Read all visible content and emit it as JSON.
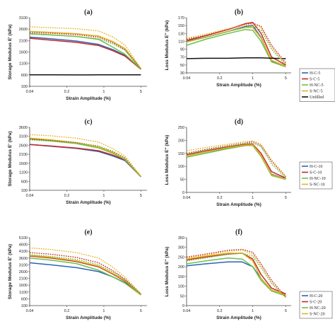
{
  "chart_data": [
    {
      "type": "line",
      "panel_label": "(a)",
      "xlabel": "Strain Amplitude (%)",
      "ylabel": "Storage Modulus E' (kPa)",
      "x_ticks": [
        0.04,
        0.2,
        1,
        5
      ],
      "xlim": [
        0.04,
        6.5
      ],
      "y_ticks": [
        100,
        600,
        1100,
        1600,
        2100,
        2600,
        3100
      ],
      "ylim": [
        100,
        3100
      ],
      "x": [
        0.04,
        0.1,
        0.3,
        0.8,
        1.5,
        2.5,
        5
      ],
      "series": [
        {
          "name": "H-C-5",
          "color": "#2e62b8",
          "dash": false,
          "values": [
            2250,
            2180,
            2080,
            1930,
            1700,
            1450,
            850
          ]
        },
        {
          "name": "S-C-5",
          "color": "#c62828",
          "dash": false,
          "values": [
            2200,
            2120,
            2020,
            1880,
            1650,
            1420,
            850
          ]
        },
        {
          "name": "H-NC-5",
          "color": "#6cc04a",
          "dash": false,
          "values": [
            2400,
            2350,
            2280,
            2150,
            1800,
            1500,
            860
          ]
        },
        {
          "name": "S-NC-5",
          "color": "#e2b321",
          "dash": false,
          "values": [
            2500,
            2460,
            2400,
            2300,
            2050,
            1750,
            870
          ]
        },
        {
          "name": "Unfilled",
          "color": "#111111",
          "dash": false,
          "values": [
            600,
            600,
            598,
            600,
            602,
            600,
            600
          ]
        },
        {
          "name": "",
          "color": "#c62828",
          "dash": true,
          "values": [
            2450,
            2420,
            2360,
            2250,
            2000,
            1700,
            860
          ]
        },
        {
          "name": "",
          "color": "#6cc04a",
          "dash": true,
          "values": [
            2380,
            2340,
            2280,
            2180,
            1950,
            1680,
            860
          ]
        },
        {
          "name": "",
          "color": "#e2b321",
          "dash": true,
          "values": [
            2700,
            2660,
            2620,
            2520,
            2250,
            1900,
            880
          ]
        }
      ],
      "legend": [
        "H-C-5",
        "S-C-5",
        "H-NC-5",
        "S-NC-5",
        "Unfilled"
      ]
    },
    {
      "type": "line",
      "panel_label": "(b)",
      "xlabel": "Strain Amplitude (%)",
      "ylabel": "Loss Modulus E'' (kPa)",
      "x_ticks": [
        0.04,
        0.2,
        1,
        5
      ],
      "xlim": [
        0.04,
        6.5
      ],
      "y_ticks": [
        30,
        50,
        70,
        90,
        110,
        130,
        150,
        170
      ],
      "ylim": [
        30,
        170
      ],
      "x": [
        0.04,
        0.1,
        0.3,
        0.7,
        1.0,
        1.5,
        2.5,
        5
      ],
      "series": [
        {
          "name": "H-C-5",
          "color": "#2e62b8",
          "dash": false,
          "values": [
            110,
            120,
            135,
            148,
            150,
            120,
            60,
            48
          ]
        },
        {
          "name": "S-C-5",
          "color": "#c62828",
          "dash": false,
          "values": [
            112,
            124,
            140,
            155,
            158,
            130,
            70,
            50
          ]
        },
        {
          "name": "H-NC-5",
          "color": "#6cc04a",
          "dash": false,
          "values": [
            100,
            115,
            130,
            140,
            138,
            110,
            58,
            45
          ]
        },
        {
          "name": "S-NC-5",
          "color": "#e2b321",
          "dash": false,
          "values": [
            108,
            120,
            135,
            145,
            145,
            118,
            62,
            47
          ]
        },
        {
          "name": "Unfilled",
          "color": "#111111",
          "dash": false,
          "values": [
            66,
            67,
            67,
            68,
            68,
            68,
            67,
            66
          ]
        },
        {
          "name": "",
          "color": "#c62828",
          "dash": true,
          "values": [
            115,
            125,
            140,
            152,
            156,
            148,
            100,
            55
          ]
        },
        {
          "name": "",
          "color": "#6cc04a",
          "dash": true,
          "values": [
            110,
            120,
            135,
            146,
            148,
            138,
            90,
            50
          ]
        },
        {
          "name": "",
          "color": "#e2b321",
          "dash": true,
          "values": [
            118,
            128,
            142,
            152,
            154,
            145,
            95,
            52
          ]
        }
      ],
      "legend": [
        "H-C-5",
        "S-C-5",
        "H-NC-5",
        "S-NC-5",
        "Unfilled"
      ]
    },
    {
      "type": "line",
      "panel_label": "(c)",
      "xlabel": "Strain Amplitude (%)",
      "ylabel": "Storage Modulus E' (kPa)",
      "x_ticks": [
        0.04,
        0.2,
        1,
        5
      ],
      "xlim": [
        0.04,
        6.5
      ],
      "y_ticks": [
        100,
        600,
        1100,
        1600,
        2100,
        2600,
        3100,
        3600
      ],
      "ylim": [
        100,
        3600
      ],
      "x": [
        0.04,
        0.1,
        0.3,
        0.8,
        1.5,
        2.5,
        5
      ],
      "series": [
        {
          "name": "H-C-10",
          "color": "#2e62b8",
          "dash": false,
          "values": [
            2650,
            2550,
            2430,
            2250,
            2000,
            1750,
            850
          ]
        },
        {
          "name": "S-C-10",
          "color": "#c62828",
          "dash": false,
          "values": [
            2650,
            2560,
            2450,
            2300,
            2050,
            1800,
            850
          ]
        },
        {
          "name": "H-NC-10",
          "color": "#6cc04a",
          "dash": false,
          "values": [
            2950,
            2850,
            2700,
            2450,
            2150,
            1820,
            860
          ]
        },
        {
          "name": "S-NC-10",
          "color": "#e2b321",
          "dash": false,
          "values": [
            3000,
            2900,
            2750,
            2500,
            2200,
            1850,
            870
          ]
        },
        {
          "name": "",
          "color": "#c62828",
          "dash": true,
          "values": [
            2950,
            2870,
            2750,
            2550,
            2250,
            1900,
            860
          ]
        },
        {
          "name": "",
          "color": "#6cc04a",
          "dash": true,
          "values": [
            2900,
            2830,
            2720,
            2530,
            2230,
            1880,
            860
          ]
        },
        {
          "name": "",
          "color": "#e2b321",
          "dash": true,
          "values": [
            3200,
            3130,
            3000,
            2780,
            2400,
            2000,
            880
          ]
        }
      ],
      "legend": [
        "H-C-10",
        "S-C-10",
        "H-NC-10",
        "S-NC-10"
      ]
    },
    {
      "type": "line",
      "panel_label": "(d)",
      "xlabel": "Strain Amplitude (%)",
      "ylabel": "Loss Modulus E'' (kPa)",
      "x_ticks": [
        0.04,
        0.2,
        1,
        5
      ],
      "xlim": [
        0.04,
        6.5
      ],
      "y_ticks": [
        0,
        50,
        100,
        150,
        200,
        250
      ],
      "ylim": [
        0,
        250
      ],
      "x": [
        0.04,
        0.1,
        0.3,
        0.7,
        1.0,
        1.5,
        2.5,
        5
      ],
      "series": [
        {
          "name": "H-C-10",
          "color": "#2e62b8",
          "dash": false,
          "values": [
            140,
            155,
            170,
            180,
            182,
            140,
            70,
            52
          ]
        },
        {
          "name": "S-C-10",
          "color": "#c62828",
          "dash": false,
          "values": [
            145,
            160,
            175,
            185,
            185,
            150,
            80,
            55
          ]
        },
        {
          "name": "H-NC-10",
          "color": "#6cc04a",
          "dash": false,
          "values": [
            135,
            150,
            168,
            180,
            180,
            138,
            65,
            50
          ]
        },
        {
          "name": "S-NC-10",
          "color": "#e2b321",
          "dash": false,
          "values": [
            140,
            155,
            172,
            182,
            183,
            142,
            68,
            51
          ]
        },
        {
          "name": "",
          "color": "#c62828",
          "dash": true,
          "values": [
            150,
            165,
            180,
            190,
            195,
            180,
            120,
            60
          ]
        },
        {
          "name": "",
          "color": "#6cc04a",
          "dash": true,
          "values": [
            148,
            162,
            178,
            188,
            190,
            175,
            110,
            55
          ]
        },
        {
          "name": "",
          "color": "#e2b321",
          "dash": true,
          "values": [
            160,
            172,
            185,
            195,
            198,
            185,
            125,
            62
          ]
        }
      ],
      "legend": [
        "H-C-10",
        "S-C-10",
        "H-NC-10",
        "S-NC-10"
      ]
    },
    {
      "type": "line",
      "panel_label": "(e)",
      "xlabel": "Strain Amplitude (%)",
      "ylabel": "Storage Modulus E' (kPa)",
      "x_ticks": [
        0.04,
        0.2,
        1,
        5
      ],
      "xlim": [
        0.04,
        6.5
      ],
      "y_ticks": [
        100,
        600,
        1100,
        1600,
        2100,
        2600,
        3100,
        3600,
        4100,
        4600,
        5100
      ],
      "ylim": [
        100,
        5100
      ],
      "x": [
        0.04,
        0.1,
        0.3,
        0.8,
        1.5,
        2.5,
        5
      ],
      "series": [
        {
          "name": "H-C-20",
          "color": "#2e62b8",
          "dash": false,
          "values": [
            3250,
            3100,
            2900,
            2600,
            2200,
            1800,
            900
          ]
        },
        {
          "name": "S-C-20",
          "color": "#c62828",
          "dash": false,
          "values": [
            3750,
            3600,
            3350,
            2950,
            2400,
            1900,
            900
          ]
        },
        {
          "name": "H-NC-20",
          "color": "#6cc04a",
          "dash": false,
          "values": [
            3600,
            3450,
            3200,
            2700,
            2200,
            1750,
            880
          ]
        },
        {
          "name": "S-NC-20",
          "color": "#e2b321",
          "dash": false,
          "values": [
            3800,
            3650,
            3400,
            3000,
            2450,
            1950,
            920
          ]
        },
        {
          "name": "",
          "color": "#c62828",
          "dash": true,
          "values": [
            4000,
            3880,
            3650,
            3250,
            2650,
            2050,
            950
          ]
        },
        {
          "name": "",
          "color": "#6cc04a",
          "dash": true,
          "values": [
            3850,
            3720,
            3500,
            3100,
            2550,
            2000,
            930
          ]
        },
        {
          "name": "",
          "color": "#e2b321",
          "dash": true,
          "values": [
            4350,
            4230,
            4000,
            3600,
            2900,
            2200,
            980
          ]
        }
      ],
      "legend": [
        "H-C-20",
        "S-C-20",
        "H-NC-20",
        "S-NC-20"
      ]
    },
    {
      "type": "line",
      "panel_label": "(f)",
      "xlabel": "Strain Amplitude (%)",
      "ylabel": "Loss Modulus E'' (kPa)",
      "x_ticks": [
        0.04,
        0.2,
        1,
        5
      ],
      "xlim": [
        0.04,
        6.5
      ],
      "y_ticks": [
        0,
        50,
        100,
        150,
        200,
        250,
        300,
        350
      ],
      "ylim": [
        0,
        350
      ],
      "x": [
        0.04,
        0.1,
        0.3,
        0.6,
        1.0,
        1.5,
        2.5,
        5
      ],
      "series": [
        {
          "name": "H-C-20",
          "color": "#2e62b8",
          "dash": false,
          "values": [
            205,
            215,
            225,
            225,
            200,
            140,
            80,
            55
          ]
        },
        {
          "name": "S-C-20",
          "color": "#c62828",
          "dash": false,
          "values": [
            235,
            250,
            265,
            270,
            240,
            160,
            90,
            60
          ]
        },
        {
          "name": "H-NC-20",
          "color": "#6cc04a",
          "dash": false,
          "values": [
            215,
            230,
            245,
            240,
            200,
            130,
            75,
            50
          ]
        },
        {
          "name": "S-NC-20",
          "color": "#e2b321",
          "dash": false,
          "values": [
            240,
            255,
            270,
            270,
            230,
            140,
            80,
            55
          ]
        },
        {
          "name": "",
          "color": "#c62828",
          "dash": true,
          "values": [
            250,
            265,
            285,
            290,
            275,
            215,
            130,
            45
          ]
        },
        {
          "name": "",
          "color": "#6cc04a",
          "dash": true,
          "values": [
            230,
            245,
            265,
            270,
            255,
            195,
            115,
            42
          ]
        },
        {
          "name": "",
          "color": "#e2b321",
          "dash": true,
          "values": [
            245,
            260,
            280,
            285,
            265,
            205,
            120,
            40
          ]
        }
      ],
      "legend": [
        "H-C-20",
        "S-C-20",
        "H-NC-20",
        "S-NC-20"
      ]
    }
  ]
}
